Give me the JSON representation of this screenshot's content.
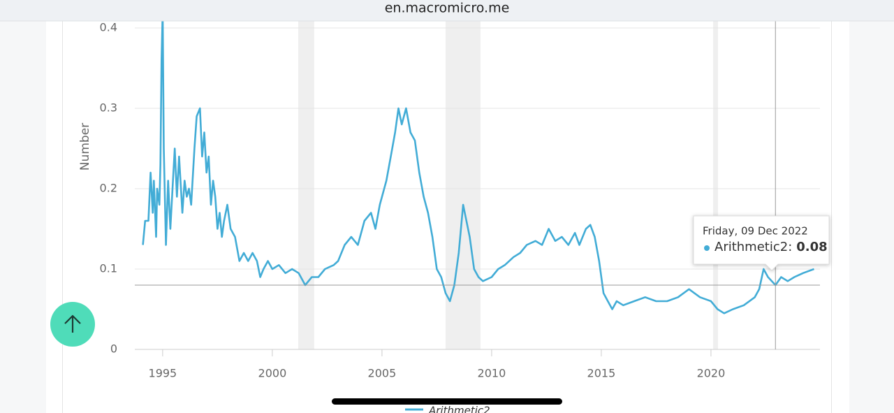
{
  "browser": {
    "url": "en.macromicro.me"
  },
  "chart_data": {
    "type": "line",
    "y_label": "Number",
    "x": [
      1994.1,
      1994.2,
      1994.35,
      1994.45,
      1994.55,
      1994.6,
      1994.7,
      1994.75,
      1994.85,
      1994.9,
      1994.95,
      1995.0,
      1995.05,
      1995.15,
      1995.25,
      1995.35,
      1995.45,
      1995.55,
      1995.65,
      1995.75,
      1995.9,
      1996.0,
      1996.1,
      1996.2,
      1996.3,
      1996.45,
      1996.55,
      1996.7,
      1996.8,
      1996.9,
      1997.0,
      1997.1,
      1997.2,
      1997.3,
      1997.4,
      1997.5,
      1997.6,
      1997.7,
      1997.8,
      1997.95,
      1998.1,
      1998.3,
      1998.5,
      1998.7,
      1998.9,
      1999.1,
      1999.3,
      1999.45,
      1999.6,
      1999.8,
      2000.0,
      2000.3,
      2000.6,
      2000.9,
      2001.2,
      2001.5,
      2001.8,
      2002.1,
      2002.4,
      2002.8,
      2003.0,
      2003.3,
      2003.6,
      2003.9,
      2004.2,
      2004.5,
      2004.7,
      2004.9,
      2005.2,
      2005.4,
      2005.6,
      2005.75,
      2005.9,
      2006.1,
      2006.3,
      2006.5,
      2006.7,
      2006.9,
      2007.1,
      2007.3,
      2007.5,
      2007.7,
      2007.9,
      2008.1,
      2008.3,
      2008.5,
      2008.7,
      2008.85,
      2009.0,
      2009.2,
      2009.4,
      2009.6,
      2010.0,
      2010.3,
      2010.6,
      2011.0,
      2011.3,
      2011.6,
      2012.0,
      2012.3,
      2012.6,
      2012.9,
      2013.2,
      2013.5,
      2013.8,
      2014.0,
      2014.3,
      2014.5,
      2014.7,
      2014.9,
      2015.1,
      2015.3,
      2015.5,
      2015.7,
      2016.0,
      2016.5,
      2017.0,
      2017.5,
      2018.0,
      2018.5,
      2019.0,
      2019.5,
      2020.0,
      2020.3,
      2020.6,
      2021.0,
      2021.5,
      2022.0,
      2022.2,
      2022.4,
      2022.6,
      2022.94,
      2023.2,
      2023.5,
      2023.8,
      2024.2,
      2024.7
    ],
    "series": [
      {
        "name": "Arithmetic2",
        "color": "#42acd6",
        "values": [
          0.13,
          0.16,
          0.16,
          0.22,
          0.17,
          0.21,
          0.14,
          0.2,
          0.18,
          0.23,
          0.36,
          0.42,
          0.25,
          0.13,
          0.21,
          0.15,
          0.2,
          0.25,
          0.19,
          0.24,
          0.17,
          0.21,
          0.19,
          0.2,
          0.18,
          0.25,
          0.29,
          0.3,
          0.24,
          0.27,
          0.22,
          0.24,
          0.18,
          0.21,
          0.19,
          0.15,
          0.17,
          0.14,
          0.16,
          0.18,
          0.15,
          0.14,
          0.11,
          0.12,
          0.11,
          0.12,
          0.11,
          0.09,
          0.1,
          0.11,
          0.1,
          0.105,
          0.095,
          0.1,
          0.095,
          0.08,
          0.09,
          0.09,
          0.1,
          0.105,
          0.11,
          0.13,
          0.14,
          0.13,
          0.16,
          0.17,
          0.15,
          0.18,
          0.21,
          0.24,
          0.27,
          0.3,
          0.28,
          0.3,
          0.27,
          0.26,
          0.22,
          0.19,
          0.17,
          0.14,
          0.1,
          0.09,
          0.07,
          0.06,
          0.08,
          0.12,
          0.18,
          0.16,
          0.14,
          0.1,
          0.09,
          0.085,
          0.09,
          0.1,
          0.105,
          0.115,
          0.12,
          0.13,
          0.135,
          0.13,
          0.15,
          0.135,
          0.14,
          0.13,
          0.145,
          0.13,
          0.15,
          0.155,
          0.14,
          0.11,
          0.07,
          0.06,
          0.05,
          0.06,
          0.055,
          0.06,
          0.065,
          0.06,
          0.06,
          0.065,
          0.075,
          0.065,
          0.06,
          0.05,
          0.045,
          0.05,
          0.055,
          0.065,
          0.075,
          0.1,
          0.09,
          0.08,
          0.09,
          0.085,
          0.09,
          0.095,
          0.1
        ]
      }
    ],
    "recessions": [
      [
        2001.18,
        2001.91
      ],
      [
        2007.9,
        2009.49
      ],
      [
        2020.1,
        2020.32
      ]
    ],
    "xlim": [
      1993.73,
      2024.97
    ],
    "xticks": [
      1995,
      2000,
      2005,
      2010,
      2015,
      2020
    ],
    "ylim": [
      0,
      0.4
    ],
    "yticks": [
      0,
      0.1,
      0.2,
      0.3,
      0.4
    ],
    "grid": true,
    "tooltip": {
      "date": "Friday, 09 Dec 2022",
      "label": "Arithmetic2:",
      "x": 2022.94,
      "value": 0.08
    }
  }
}
